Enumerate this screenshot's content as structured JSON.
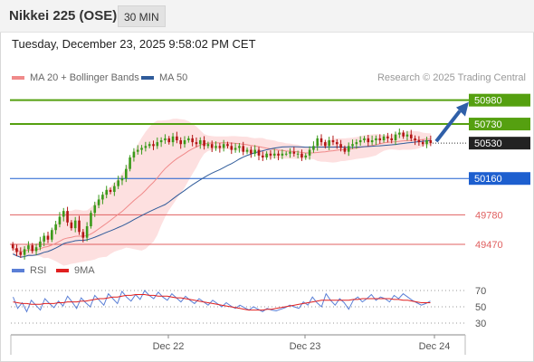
{
  "header": {
    "title": "Nikkei 225 (OSE)",
    "timeframe": "30 MIN"
  },
  "datetime": "Tuesday, December 23, 2025 9:58:02 PM CET",
  "legend": {
    "ma20_label": "MA 20 + Bollinger Bands",
    "ma20_color": "#f08a8a",
    "ma50_label": "MA 50",
    "ma50_color": "#2f5b9a"
  },
  "credit": "Research © 2025 Trading Central",
  "rsi_legend": {
    "rsi_label": "RSI",
    "rsi_color": "#5b7fd6",
    "ma_label": "9MA",
    "ma_color": "#e02020"
  },
  "colors": {
    "bull": "#3a9a1a",
    "bear": "#b31515",
    "resistance": "#55a010",
    "pivot": "#1d5fcf",
    "support": "#e06060",
    "band_fill": "#fde0e0",
    "forecast_arrow": "#2f5fa8"
  },
  "chart_data": {
    "type": "candlestick",
    "title": "Nikkei 225 (OSE)",
    "timeframe": "30 MIN",
    "x_tick_labels": [
      "Dec 22",
      "Dec 23",
      "Dec 24"
    ],
    "last_price": 50530,
    "price_range": [
      49300,
      51100
    ],
    "levels": [
      {
        "label": "50980",
        "value": 50980,
        "kind": "resistance"
      },
      {
        "label": "50730",
        "value": 50730,
        "kind": "resistance"
      },
      {
        "label": "50530",
        "value": 50530,
        "kind": "last"
      },
      {
        "label": "50160",
        "value": 50160,
        "kind": "pivot"
      },
      {
        "label": "49780",
        "value": 49780,
        "kind": "support"
      },
      {
        "label": "49470",
        "value": 49470,
        "kind": "support"
      }
    ],
    "forecast": {
      "from": 50530,
      "to": 50980,
      "direction": "up"
    },
    "candles_close": [
      49430,
      49390,
      49360,
      49420,
      49460,
      49400,
      49440,
      49500,
      49560,
      49520,
      49620,
      49680,
      49760,
      49820,
      49700,
      49640,
      49720,
      49600,
      49540,
      49660,
      49800,
      49880,
      49940,
      49990,
      50040,
      50020,
      50080,
      50140,
      50160,
      50260,
      50380,
      50440,
      50460,
      50480,
      50500,
      50520,
      50500,
      50540,
      50560,
      50580,
      50540,
      50600,
      50560,
      50520,
      50560,
      50580,
      50540,
      50520,
      50560,
      50500,
      50520,
      50480,
      50500,
      50480,
      50520,
      50500,
      50460,
      50480,
      50500,
      50440,
      50460,
      50420,
      50460,
      50400,
      50380,
      50420,
      50400,
      50420,
      50400,
      50420,
      50420,
      50440,
      50420,
      50420,
      50380,
      50400,
      50460,
      50500,
      50580,
      50540,
      50500,
      50560,
      50540,
      50520,
      50480,
      50440,
      50500,
      50520,
      50540,
      50560,
      50580,
      50540,
      50560,
      50580,
      50560,
      50600,
      50580,
      50560,
      50620,
      50640,
      50600,
      50620,
      50580,
      50560,
      50540,
      50520,
      50560,
      50530
    ],
    "ma50_end": 50480,
    "rsi": {
      "levels": [
        70,
        50,
        30
      ],
      "level_labels": [
        "70",
        "50",
        "30"
      ],
      "range": [
        20,
        80
      ],
      "rsi_values": [
        62,
        48,
        55,
        44,
        58,
        52,
        46,
        60,
        54,
        49,
        57,
        51,
        63,
        56,
        48,
        61,
        55,
        50,
        64,
        58,
        52,
        66,
        60,
        54,
        69,
        62,
        57,
        65,
        59,
        70,
        64,
        60,
        68,
        62,
        58,
        66,
        61,
        56,
        63,
        58,
        54,
        60,
        56,
        52,
        58,
        54,
        50,
        55,
        51,
        48,
        52,
        49,
        46,
        50,
        47,
        44,
        48,
        46,
        45,
        47,
        49,
        52,
        50,
        48,
        56,
        52,
        62,
        55,
        50,
        66,
        58,
        52,
        60,
        55,
        47,
        58,
        62,
        56,
        60,
        65,
        58,
        62,
        60,
        56,
        64,
        60,
        66,
        62,
        58,
        55,
        52,
        54,
        57
      ],
      "ma_values": [
        56,
        55,
        54,
        54,
        53,
        53,
        53,
        54,
        54,
        54,
        55,
        55,
        56,
        56,
        56,
        57,
        57,
        58,
        59,
        60,
        60,
        61,
        62,
        62,
        63,
        64,
        64,
        65,
        65,
        65,
        64,
        64,
        63,
        63,
        63,
        62,
        61,
        61,
        60,
        59,
        58,
        57,
        56,
        55,
        54,
        53,
        52,
        51,
        50,
        49,
        48,
        47,
        46,
        46,
        46,
        46,
        47,
        47,
        48,
        49,
        50,
        51,
        52,
        53,
        54,
        55,
        56,
        57,
        58,
        58,
        58,
        58,
        58,
        58,
        58,
        59,
        59,
        60,
        60,
        60,
        60,
        60,
        60,
        60,
        59,
        59,
        58,
        58,
        57,
        56,
        55,
        55,
        55
      ]
    }
  }
}
